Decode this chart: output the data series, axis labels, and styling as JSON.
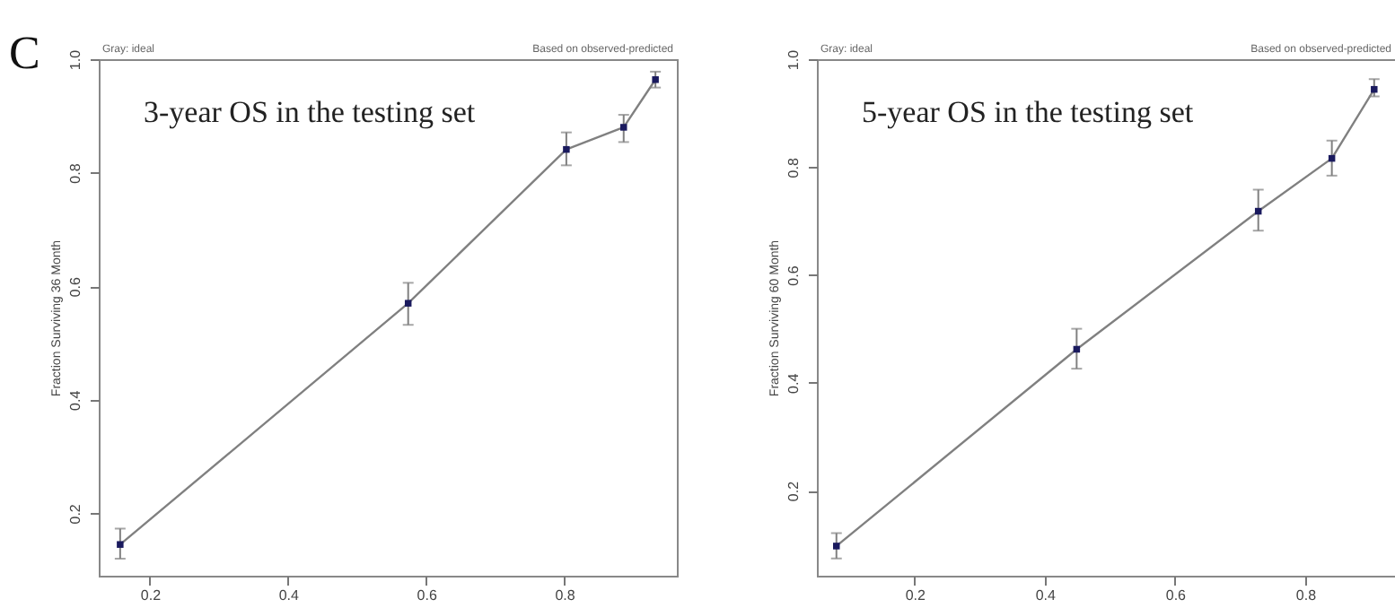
{
  "chart_data": [
    {
      "type": "line",
      "title": "3-year OS in the testing set",
      "ylabel": "Fraction Surviving 36 Month",
      "annotations": [
        "C",
        "Gray: ideal",
        "Based on observed-predicted"
      ],
      "x": [
        0.157,
        0.574,
        0.803,
        0.886,
        0.932
      ],
      "series": [
        {
          "color": "#808080",
          "values": [
            0.145,
            0.57,
            0.841,
            0.88,
            0.964
          ],
          "errors": [
            [
              0.12,
              0.173
            ],
            [
              0.532,
              0.606
            ],
            [
              0.813,
              0.871
            ],
            [
              0.854,
              0.902
            ],
            [
              0.95,
              0.978
            ]
          ]
        }
      ],
      "marker": "square",
      "grid": false,
      "xlim": [
        0.126,
        0.963
      ],
      "ylim": [
        0.09,
        1.0
      ],
      "xticks": [
        0.2,
        0.4,
        0.6,
        0.8
      ],
      "yticks": [
        0.2,
        0.4,
        0.6,
        0.8,
        {
          "value": 1,
          "label": "1.0"
        }
      ]
    },
    {
      "type": "line",
      "title": "5-year OS in the testing set",
      "ylabel": "Fraction Surviving 60 Month",
      "annotations": [
        "Gray: ideal",
        "Based on observed-predicted"
      ],
      "x": [
        0.08,
        0.449,
        0.728,
        0.841,
        0.906
      ],
      "series": [
        {
          "color": "#808080",
          "values": [
            0.097,
            0.462,
            0.718,
            0.816,
            0.944
          ],
          "errors": [
            [
              0.074,
              0.121
            ],
            [
              0.426,
              0.5
            ],
            [
              0.682,
              0.758
            ],
            [
              0.784,
              0.849
            ],
            [
              0.931,
              0.963
            ]
          ]
        }
      ],
      "marker": "square",
      "grid": false,
      "xlim": [
        0.05,
        0.938
      ],
      "ylim": [
        0.042,
        1.0
      ],
      "xticks": [
        0.2,
        0.4,
        0.6,
        0.8
      ],
      "yticks": [
        0.2,
        0.4,
        0.6,
        0.8,
        {
          "value": 1,
          "label": "1.0"
        }
      ]
    }
  ]
}
